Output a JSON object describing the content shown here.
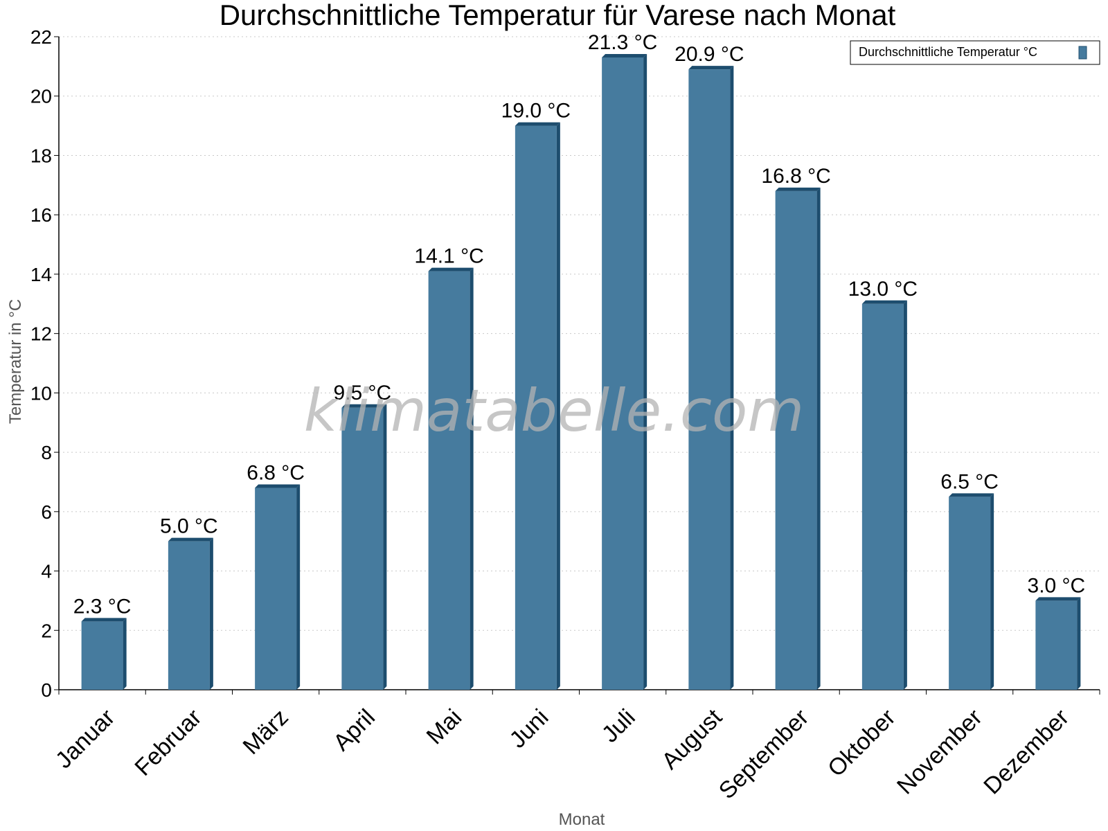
{
  "watermark": "klimatabelle.com",
  "colors": {
    "bar": "#467b9e",
    "bar_dark": "#1d4d6e",
    "grid": "#c8c8c8"
  },
  "chart_data": {
    "type": "bar",
    "title": "Durchschnittliche Temperatur für Varese nach Monat",
    "xlabel": "Monat",
    "ylabel": "Temperatur in °C",
    "ylim": [
      0,
      22
    ],
    "yticks": [
      0,
      2,
      4,
      6,
      8,
      10,
      12,
      14,
      16,
      18,
      20,
      22
    ],
    "grid": true,
    "legend_position": "top-right",
    "categories": [
      "Januar",
      "Februar",
      "März",
      "April",
      "Mai",
      "Juni",
      "Juli",
      "August",
      "September",
      "Oktober",
      "November",
      "Dezember"
    ],
    "series": [
      {
        "name": "Durchschnittliche Temperatur °C",
        "values": [
          2.3,
          5.0,
          6.8,
          9.5,
          14.1,
          19.0,
          21.3,
          20.9,
          16.8,
          13.0,
          6.5,
          3.0
        ],
        "labels": [
          "2.3 °C",
          "5.0 °C",
          "6.8 °C",
          "9.5 °C",
          "14.1 °C",
          "19.0 °C",
          "21.3 °C",
          "20.9 °C",
          "16.8 °C",
          "13.0 °C",
          "6.5 °C",
          "3.0 °C"
        ]
      }
    ]
  }
}
